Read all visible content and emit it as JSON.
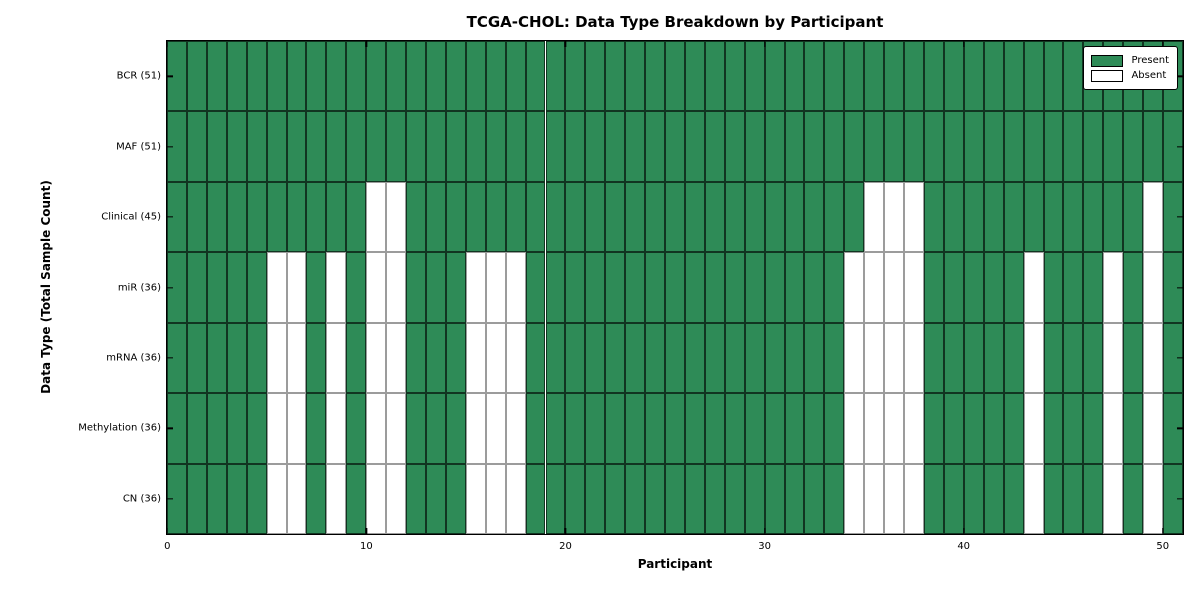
{
  "chart_data": {
    "type": "heatmap",
    "title": "TCGA-CHOL: Data Type Breakdown by Participant",
    "xlabel": "Participant",
    "ylabel": "Data Type (Total Sample Count)",
    "n_participants": 51,
    "x_ticks": [
      0,
      10,
      20,
      30,
      40,
      50
    ],
    "grid": "cell-borders",
    "colors": {
      "present": "#2e8b57",
      "absent": "#ffffff"
    },
    "legend": {
      "position": "upper-right",
      "entries": [
        {
          "label": "Present",
          "color": "#2e8b57"
        },
        {
          "label": "Absent",
          "color": "#ffffff"
        }
      ]
    },
    "rows": [
      {
        "label": "BCR (51)",
        "data_type": "BCR",
        "total_samples": 51,
        "absent_participants": []
      },
      {
        "label": "MAF (51)",
        "data_type": "MAF",
        "total_samples": 51,
        "absent_participants": []
      },
      {
        "label": "Clinical (45)",
        "data_type": "Clinical",
        "total_samples": 45,
        "absent_participants": [
          10,
          11,
          35,
          36,
          37,
          49
        ]
      },
      {
        "label": "miR (36)",
        "data_type": "miR",
        "total_samples": 36,
        "absent_participants": [
          5,
          6,
          8,
          10,
          11,
          15,
          16,
          17,
          34,
          35,
          36,
          37,
          43,
          47,
          49
        ]
      },
      {
        "label": "mRNA (36)",
        "data_type": "mRNA",
        "total_samples": 36,
        "absent_participants": [
          5,
          6,
          8,
          10,
          11,
          15,
          16,
          17,
          34,
          35,
          36,
          37,
          43,
          47,
          49
        ]
      },
      {
        "label": "Methylation (36)",
        "data_type": "Methylation",
        "total_samples": 36,
        "absent_participants": [
          5,
          6,
          8,
          10,
          11,
          15,
          16,
          17,
          34,
          35,
          36,
          37,
          43,
          47,
          49
        ]
      },
      {
        "label": "CN (36)",
        "data_type": "CN",
        "total_samples": 36,
        "absent_participants": [
          5,
          6,
          8,
          10,
          11,
          15,
          16,
          17,
          34,
          35,
          36,
          37,
          43,
          47,
          49
        ]
      }
    ]
  }
}
